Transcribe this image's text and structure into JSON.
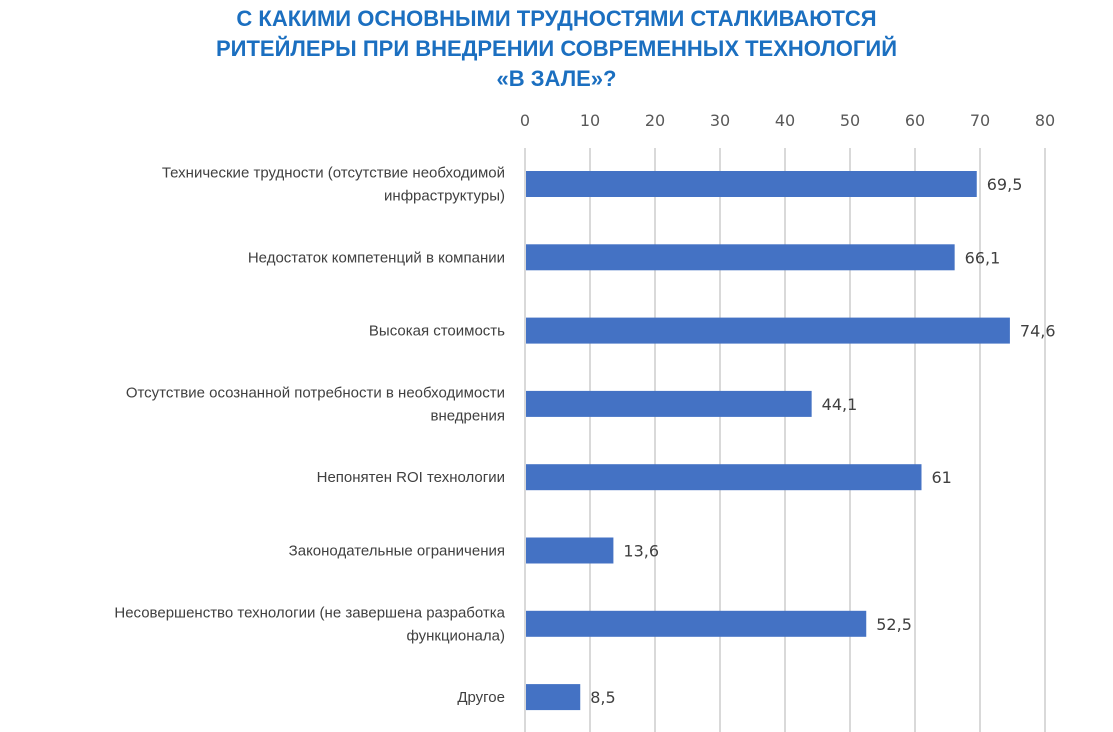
{
  "chart_data": {
    "type": "bar",
    "orientation": "horizontal",
    "title_lines": [
      "С КАКИМИ ОСНОВНЫМИ ТРУДНОСТЯМИ СТАЛКИВАЮТСЯ",
      "РИТЕЙЛЕРЫ ПРИ ВНЕДРЕНИИ СОВРЕМЕННЫХ ТЕХНОЛОГИЙ",
      "«В ЗАЛЕ»?"
    ],
    "categories": [
      [
        "Технические трудности (отсутствие необходимой",
        "инфраструктуры)"
      ],
      [
        "Недостаток компетенций в компании"
      ],
      [
        "Высокая стоимость"
      ],
      [
        "Отсутствие осознанной потребности в необходимости",
        "внедрения"
      ],
      [
        "Непонятен ROI технологии"
      ],
      [
        "Законодательные ограничения"
      ],
      [
        "Несовершенство технологии (не завершена разработка",
        "функционала)"
      ],
      [
        "Другое"
      ]
    ],
    "values": [
      69.5,
      66.1,
      74.6,
      44.1,
      61,
      13.6,
      52.5,
      8.5
    ],
    "data_labels": [
      "69,5",
      "66,1",
      "74,6",
      "44,1",
      "61",
      "13,6",
      "52,5",
      "8,5"
    ],
    "xlim": [
      0,
      80
    ],
    "ticks": [
      0,
      10,
      20,
      30,
      40,
      50,
      60,
      70,
      80
    ],
    "axis_position": "top",
    "grid": true,
    "colors": {
      "bar": "#4472c4",
      "title": "#1b6fc0",
      "grid": "#d9d9d9"
    }
  }
}
